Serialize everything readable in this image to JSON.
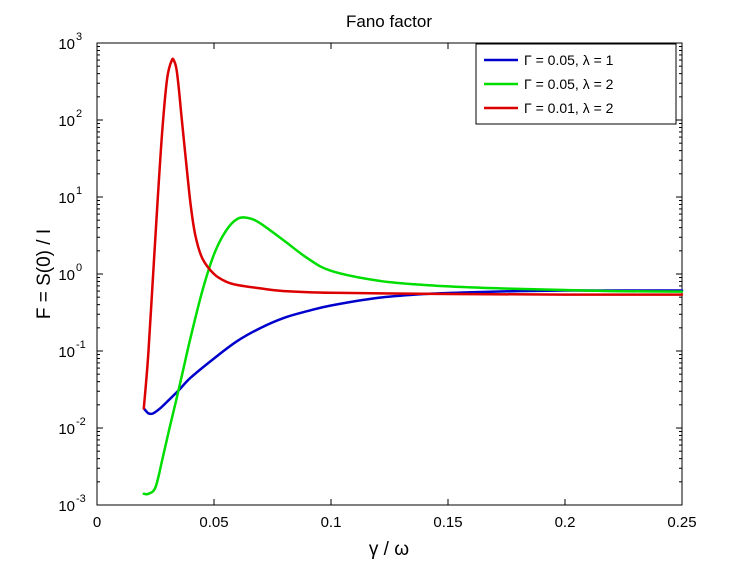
{
  "chart_data": {
    "type": "line",
    "title": "Fano factor",
    "xlabel": "γ / ω",
    "ylabel": "F = S(0) / I",
    "xlim": [
      0,
      0.25
    ],
    "ylim": [
      0.001,
      1000
    ],
    "yscale": "log",
    "x_ticks": [
      0,
      0.05,
      0.1,
      0.15,
      0.2,
      0.25
    ],
    "x_tick_labels": [
      "0",
      "0.05",
      "0.1",
      "0.15",
      "0.2",
      "0.25"
    ],
    "y_ticks": [
      0.001,
      0.01,
      0.1,
      1,
      10,
      100,
      1000
    ],
    "y_tick_base": "10",
    "y_tick_exponents": [
      "-3",
      "-2",
      "-1",
      "0",
      "1",
      "2",
      "3"
    ],
    "grid": false,
    "legend_position": "top-right",
    "series": [
      {
        "name": "Γ = 0.05, λ = 1",
        "color": "#0000cc",
        "x": [
          0.02,
          0.022,
          0.024,
          0.027,
          0.03,
          0.035,
          0.04,
          0.05,
          0.06,
          0.07,
          0.08,
          0.09,
          0.1,
          0.12,
          0.14,
          0.16,
          0.18,
          0.2,
          0.22,
          0.25
        ],
        "y": [
          0.018,
          0.0155,
          0.0155,
          0.018,
          0.022,
          0.031,
          0.045,
          0.08,
          0.135,
          0.2,
          0.27,
          0.33,
          0.39,
          0.49,
          0.55,
          0.58,
          0.6,
          0.61,
          0.61,
          0.61
        ]
      },
      {
        "name": "Γ = 0.05, λ = 2",
        "color": "#00dd00",
        "x": [
          0.02,
          0.022,
          0.025,
          0.028,
          0.031,
          0.034,
          0.037,
          0.04,
          0.045,
          0.05,
          0.055,
          0.06,
          0.065,
          0.07,
          0.08,
          0.09,
          0.1,
          0.12,
          0.14,
          0.16,
          0.18,
          0.2,
          0.22,
          0.25
        ],
        "y": [
          0.0014,
          0.0014,
          0.0017,
          0.004,
          0.01,
          0.024,
          0.06,
          0.15,
          0.6,
          1.8,
          3.6,
          5.2,
          5.3,
          4.5,
          2.7,
          1.6,
          1.1,
          0.82,
          0.72,
          0.67,
          0.64,
          0.62,
          0.6,
          0.59
        ]
      },
      {
        "name": "Γ = 0.01, λ = 2",
        "color": "#dd0000",
        "x": [
          0.02,
          0.021,
          0.022,
          0.024,
          0.026,
          0.028,
          0.03,
          0.032,
          0.033,
          0.034,
          0.035,
          0.036,
          0.038,
          0.04,
          0.042,
          0.045,
          0.05,
          0.055,
          0.06,
          0.07,
          0.08,
          0.1,
          0.15,
          0.2,
          0.25
        ],
        "y": [
          0.018,
          0.04,
          0.1,
          1.0,
          10,
          80,
          350,
          600,
          580,
          450,
          250,
          120,
          30,
          8,
          3.2,
          1.6,
          1.0,
          0.8,
          0.72,
          0.65,
          0.6,
          0.57,
          0.55,
          0.54,
          0.54
        ]
      }
    ]
  }
}
